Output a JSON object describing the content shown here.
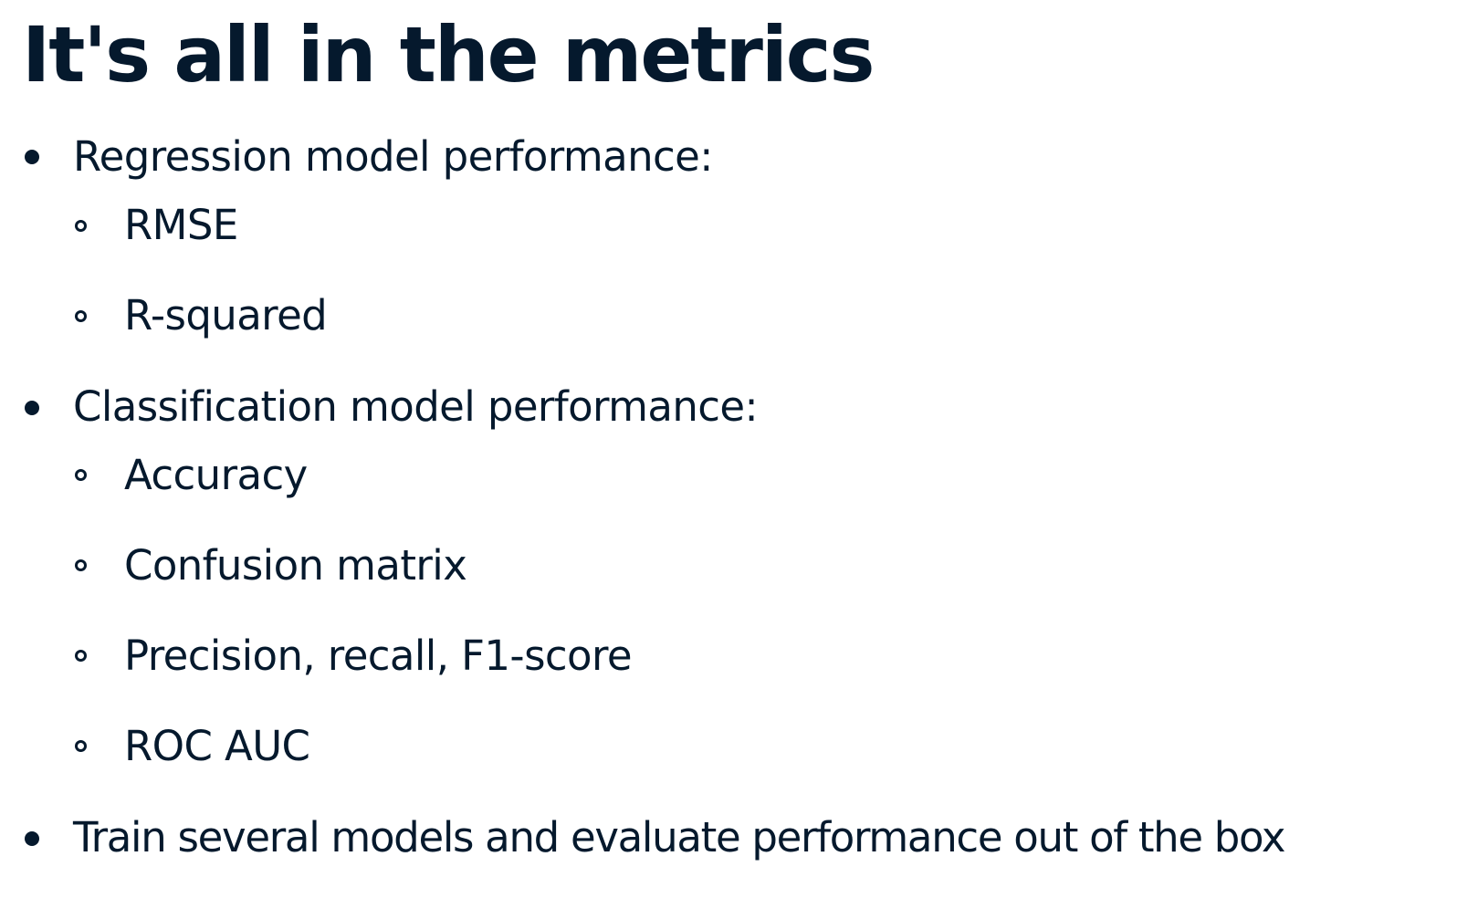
{
  "slide": {
    "title": "It's all in the metrics",
    "bullets": [
      {
        "text": "Regression model performance:",
        "subitems": [
          "RMSE",
          "R-squared"
        ]
      },
      {
        "text": "Classification model performance:",
        "subitems": [
          "Accuracy",
          "Confusion matrix",
          "Precision, recall, F1-score",
          "ROC AUC"
        ]
      },
      {
        "text": "Train several models and evaluate performance out of the box",
        "subitems": []
      }
    ]
  }
}
